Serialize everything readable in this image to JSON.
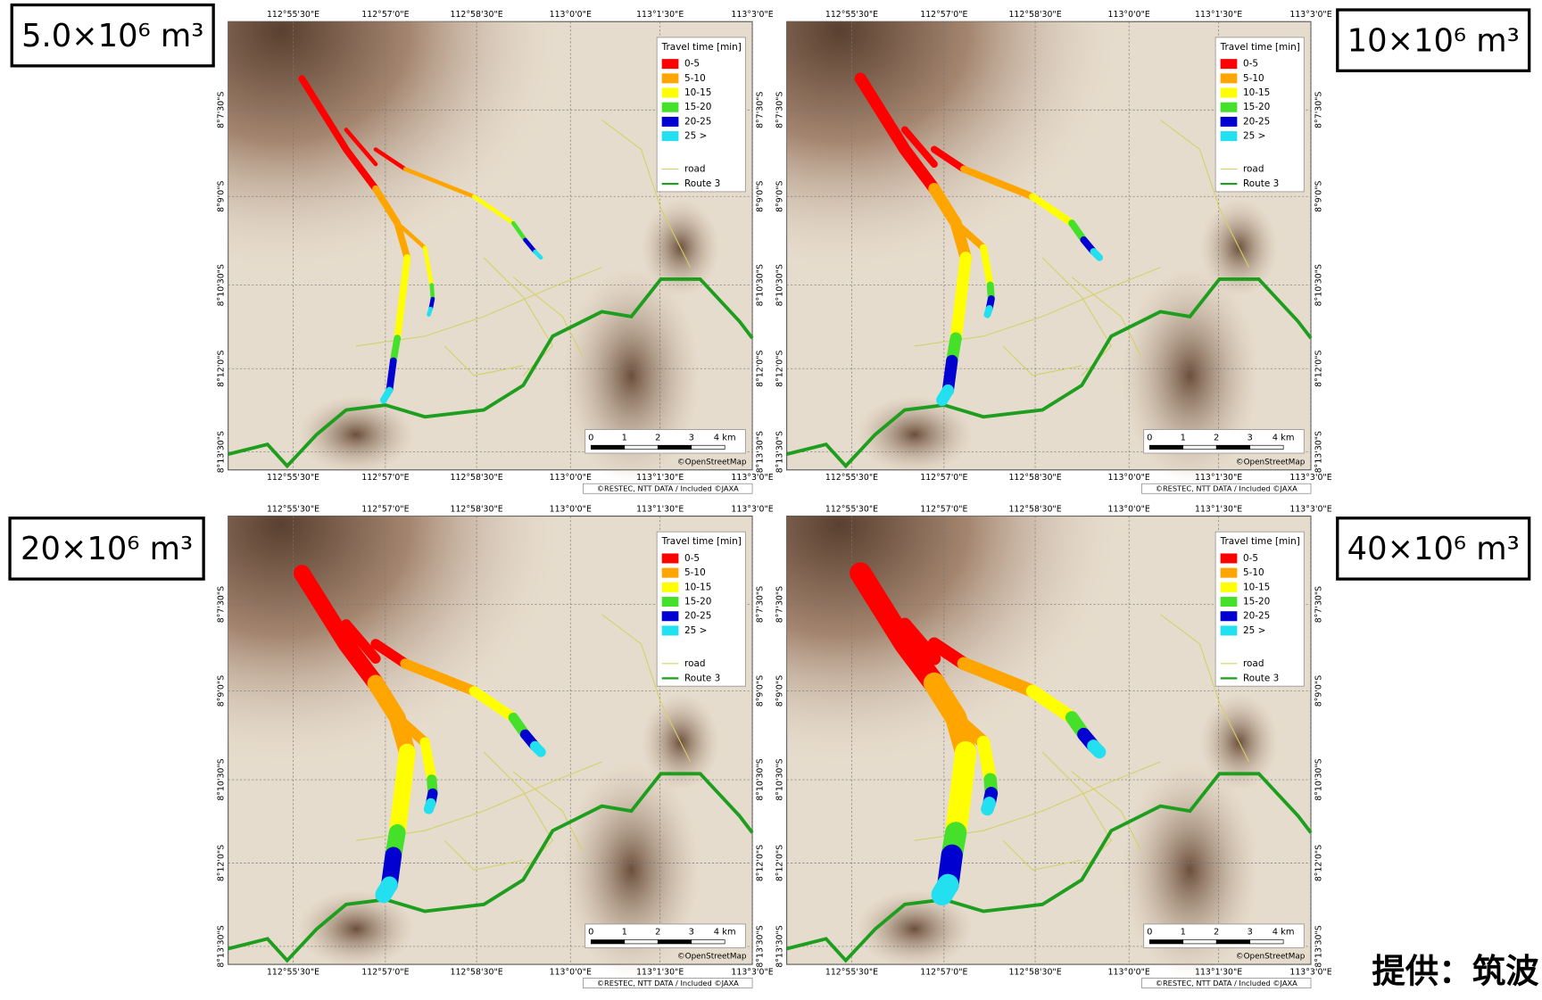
{
  "panels": [
    {
      "label": "5.0×10⁶ m³"
    },
    {
      "label": "10×10⁶ m³"
    },
    {
      "label": "20×10⁶ m³"
    },
    {
      "label": "40×10⁶ m³"
    }
  ],
  "map": {
    "lon_labels": [
      "112°55'30\"E",
      "112°57'0\"E",
      "112°58'30\"E",
      "113°0'0\"E",
      "113°1'30\"E",
      "113°3'0\"E"
    ],
    "lat_labels": [
      "8°7'30\"S",
      "8°9'0\"S",
      "8°10'30\"S",
      "8°12'0\"S",
      "8°13'30\"S"
    ],
    "legend": {
      "title": "Travel time [min]",
      "items": [
        {
          "label": "0-5",
          "color": "#ff0000"
        },
        {
          "label": "5-10",
          "color": "#ffa500"
        },
        {
          "label": "10-15",
          "color": "#ffff00"
        },
        {
          "label": "15-20",
          "color": "#44e02a"
        },
        {
          "label": "20-25",
          "color": "#0000d0"
        },
        {
          "label": "25 >",
          "color": "#22e0f0"
        }
      ],
      "lines": [
        {
          "label": "road",
          "color": "#d2d26a"
        },
        {
          "label": "Route 3",
          "color": "#1e9e1e"
        }
      ]
    },
    "scale": [
      "0",
      "1",
      "2",
      "3",
      "4 km"
    ],
    "credits": [
      "©OpenStreetMap",
      "©RESTEC, NTT DATA / Included ©JAXA"
    ]
  },
  "source": "提供：筑波"
}
